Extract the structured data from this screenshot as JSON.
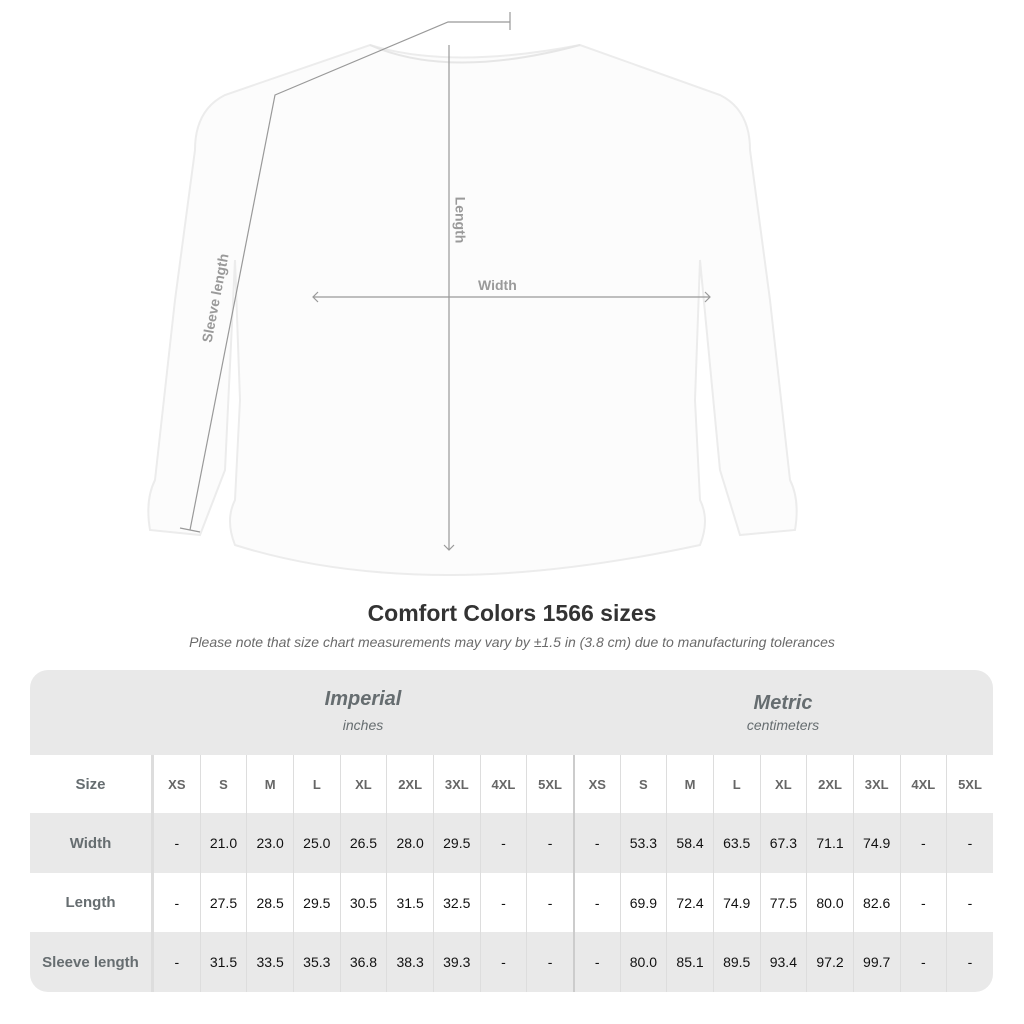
{
  "diagram": {
    "labels": {
      "sleeve": "Sleeve length",
      "length": "Length",
      "width": "Width"
    }
  },
  "title": "Comfort Colors 1566 sizes",
  "note": "Please note that size chart measurements may vary by ±1.5 in (3.8 cm) due to manufacturing tolerances",
  "table": {
    "imperial": {
      "title": "Imperial",
      "unit": "inches"
    },
    "metric": {
      "title": "Metric",
      "unit": "centimeters"
    },
    "size_label": "Size",
    "sizes": [
      "XS",
      "S",
      "M",
      "L",
      "XL",
      "2XL",
      "3XL",
      "4XL",
      "5XL"
    ],
    "rows": [
      {
        "label": "Width",
        "imperial": [
          "-",
          "21.0",
          "23.0",
          "25.0",
          "26.5",
          "28.0",
          "29.5",
          "-",
          "-"
        ],
        "metric": [
          "-",
          "53.3",
          "58.4",
          "63.5",
          "67.3",
          "71.1",
          "74.9",
          "-",
          "-"
        ]
      },
      {
        "label": "Length",
        "imperial": [
          "-",
          "27.5",
          "28.5",
          "29.5",
          "30.5",
          "31.5",
          "32.5",
          "-",
          "-"
        ],
        "metric": [
          "-",
          "69.9",
          "72.4",
          "74.9",
          "77.5",
          "80.0",
          "82.6",
          "-",
          "-"
        ]
      },
      {
        "label": "Sleeve length",
        "imperial": [
          "-",
          "31.5",
          "33.5",
          "35.3",
          "36.8",
          "38.3",
          "39.3",
          "-",
          "-"
        ],
        "metric": [
          "-",
          "80.0",
          "85.1",
          "89.5",
          "93.4",
          "97.2",
          "99.7",
          "-",
          "-"
        ]
      }
    ]
  }
}
